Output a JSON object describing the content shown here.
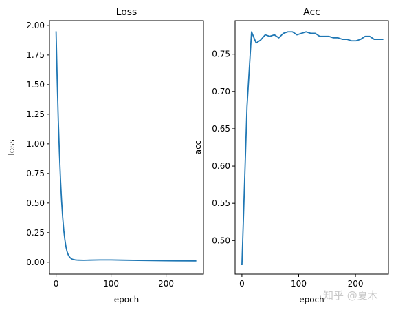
{
  "watermark": "知乎 @夏木",
  "chart_data": [
    {
      "type": "line",
      "title": "Loss",
      "xlabel": "epoch",
      "ylabel": "loss",
      "xlim": [
        -12,
        268
      ],
      "ylim": [
        -0.1,
        2.04
      ],
      "xticks": [
        0,
        100,
        200
      ],
      "yticks": [
        0.0,
        0.25,
        0.5,
        0.75,
        1.0,
        1.25,
        1.5,
        1.75,
        2.0
      ],
      "ytick_labels": [
        "0.00",
        "0.25",
        "0.50",
        "0.75",
        "1.00",
        "1.25",
        "1.50",
        "1.75",
        "2.00"
      ],
      "color": "#1f77b4",
      "grid": false,
      "series": [
        {
          "x": [
            0,
            2,
            4,
            6,
            8,
            10,
            12,
            14,
            16,
            18,
            20,
            22,
            24,
            26,
            28,
            30,
            35,
            40,
            50,
            60,
            80,
            100,
            120,
            150,
            200,
            250,
            255
          ],
          "y": [
            1.95,
            1.55,
            1.2,
            0.93,
            0.7,
            0.52,
            0.38,
            0.27,
            0.19,
            0.13,
            0.09,
            0.065,
            0.048,
            0.037,
            0.03,
            0.025,
            0.02,
            0.018,
            0.017,
            0.018,
            0.02,
            0.02,
            0.018,
            0.016,
            0.013,
            0.011,
            0.011
          ]
        }
      ]
    },
    {
      "type": "line",
      "title": "Acc",
      "xlabel": "epoch",
      "ylabel": "acc",
      "xlim": [
        -12,
        258
      ],
      "ylim": [
        0.455,
        0.795
      ],
      "xticks": [
        0,
        100,
        200
      ],
      "yticks": [
        0.5,
        0.55,
        0.6,
        0.65,
        0.7,
        0.75
      ],
      "ytick_labels": [
        "0.50",
        "0.55",
        "0.60",
        "0.65",
        "0.70",
        "0.75"
      ],
      "color": "#1f77b4",
      "grid": false,
      "series": [
        {
          "x": [
            0,
            9,
            17,
            25,
            33,
            41,
            49,
            57,
            65,
            73,
            81,
            89,
            97,
            105,
            113,
            121,
            129,
            137,
            145,
            153,
            161,
            169,
            177,
            185,
            193,
            201,
            209,
            217,
            225,
            233,
            241,
            249
          ],
          "y": [
            0.467,
            0.68,
            0.78,
            0.765,
            0.769,
            0.776,
            0.774,
            0.776,
            0.772,
            0.778,
            0.78,
            0.78,
            0.776,
            0.778,
            0.78,
            0.778,
            0.778,
            0.774,
            0.774,
            0.774,
            0.772,
            0.772,
            0.77,
            0.77,
            0.768,
            0.768,
            0.77,
            0.774,
            0.774,
            0.77,
            0.77,
            0.77
          ]
        }
      ]
    }
  ]
}
